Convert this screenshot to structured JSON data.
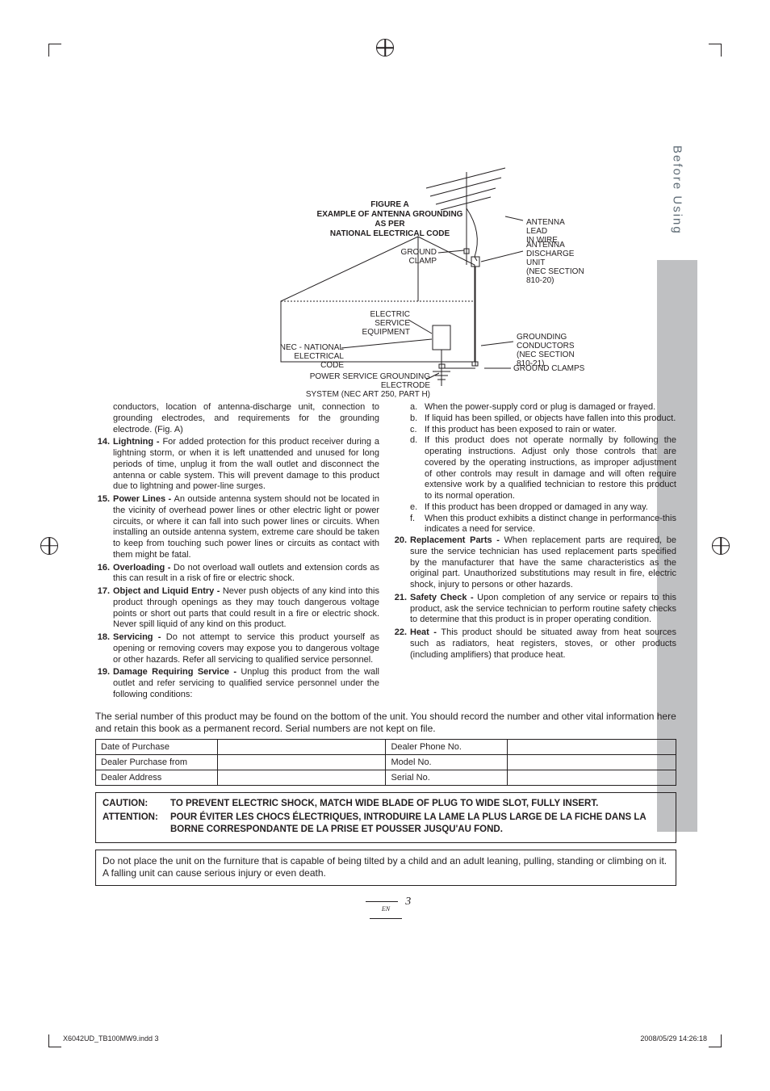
{
  "tab": {
    "label": "Before Using"
  },
  "figure": {
    "title_line1": "FIGURE A",
    "title_line2": "EXAMPLE OF ANTENNA GROUNDING AS PER",
    "title_line3": "NATIONAL ELECTRICAL CODE",
    "labels": {
      "antenna_lead": "ANTENNA LEAD\nIN WIRE",
      "discharge": "ANTENNA\nDISCHARGE UNIT\n(NEC SECTION 810-20)",
      "ground_clamp_top": "GROUND CLAMP",
      "electric_service": "ELECTRIC SERVICE\nEQUIPMENT",
      "grounding_conductors": "GROUNDING\nCONDUCTORS\n(NEC SECTION 810-21)",
      "ground_clamps_bottom": "GROUND CLAMPS",
      "nec": "NEC - NATIONAL\nELECTRICAL CODE",
      "power_service": "POWER SERVICE GROUNDING ELECTRODE\nSYSTEM (NEC ART 250, PART H)"
    }
  },
  "left_intro": "conductors, location of antenna-discharge unit, connection to grounding electrodes, and requirements for the grounding electrode. (Fig. A)",
  "items_left": [
    {
      "n": "14.",
      "t": "Lightning - ",
      "b": "For added protection for this product receiver during a lightning storm, or when it is left unattended and unused for long periods of time, unplug it from the wall outlet and disconnect the antenna or cable system. This will prevent damage to this product due to lightning and power-line surges."
    },
    {
      "n": "15.",
      "t": "Power Lines - ",
      "b": "An outside antenna system should not be located in the vicinity of overhead power lines or other electric light or power circuits, or where it can fall into such power lines or circuits. When installing an outside antenna system, extreme care should be taken to keep from touching such power lines or circuits as contact with them might be fatal."
    },
    {
      "n": "16.",
      "t": "Overloading - ",
      "b": "Do not overload wall outlets and extension cords as this can result in a risk of fire or electric shock."
    },
    {
      "n": "17.",
      "t": "Object and Liquid Entry - ",
      "b": "Never push objects of any kind into this product through openings as they may touch dangerous voltage points or short out parts that could result in a fire or electric shock. Never spill liquid of any kind on this product."
    },
    {
      "n": "18.",
      "t": "Servicing - ",
      "b": "Do not attempt to service this product yourself as opening or removing covers may expose you to dangerous voltage or other hazards. Refer all servicing to qualified service personnel."
    },
    {
      "n": "19.",
      "t": "Damage Requiring Service - ",
      "b": "Unplug this product from the wall outlet and refer servicing to qualified service personnel under the following conditions:"
    }
  ],
  "subs_right_top": [
    {
      "l": "a.",
      "t": "When the power-supply cord or plug is damaged or frayed."
    },
    {
      "l": "b.",
      "t": "If liquid has been spilled, or objects have fallen into this product."
    },
    {
      "l": "c.",
      "t": "If this product has been exposed to rain or water."
    },
    {
      "l": "d.",
      "t": "If this product does not operate normally by following the operating instructions. Adjust only those controls that are covered by the operating instructions, as improper adjustment of other controls may result in damage and will often require extensive work by a qualified technician to restore this product to its normal operation."
    },
    {
      "l": "e.",
      "t": "If this product has been dropped or damaged in any way."
    },
    {
      "l": "f.",
      "t": "When this product exhibits a distinct change in performance-this indicates a need for service."
    }
  ],
  "items_right": [
    {
      "n": "20.",
      "t": "Replacement Parts - ",
      "b": "When replacement parts are required, be sure the service technician has used replacement parts specified by the manufacturer that have the same characteristics as the original part. Unauthorized substitutions may result in fire, electric shock, injury to persons or other hazards."
    },
    {
      "n": "21.",
      "t": "Safety Check - ",
      "b": "Upon completion of any service or repairs to this product, ask the service technician to perform routine safety checks to determine that this product is in proper operating condition."
    },
    {
      "n": "22.",
      "t": "Heat - ",
      "b": "This product should be situated away from heat sources such as radiators, heat registers, stoves, or other products (including amplifiers) that produce heat."
    }
  ],
  "serial_note": "The serial number of this product may be found on the bottom of the unit. You should record the number and other vital information here and retain this book as a permanent record. Serial numbers are not kept on file.",
  "table": {
    "r1c1": "Date of Purchase",
    "r1c3": "Dealer Phone No.",
    "r2c1": "Dealer Purchase from",
    "r2c3": "Model No.",
    "r3c1": "Dealer Address",
    "r3c3": "Serial No."
  },
  "caution": {
    "row1_lead": "CAUTION:",
    "row1_body": "TO PREVENT ELECTRIC SHOCK, MATCH WIDE BLADE OF PLUG TO WIDE SLOT, FULLY INSERT.",
    "row2_lead": "ATTENTION:",
    "row2_body": "POUR ÉVITER LES CHOCS ÉLECTRIQUES, INTRODUIRE LA LAME LA PLUS LARGE DE LA FICHE DANS LA BORNE CORRESPONDANTE DE LA PRISE ET POUSSER JUSQU'AU FOND."
  },
  "warn": "Do not place the unit on the furniture that is capable of being tilted by a child and an adult leaning, pulling, standing or climbing on it. A falling unit can cause serious injury or even death.",
  "page_number": "3",
  "page_en": "EN",
  "footer_left": "X6042UD_TB100MW9.indd   3",
  "footer_right": "2008/05/29   14:26:18"
}
